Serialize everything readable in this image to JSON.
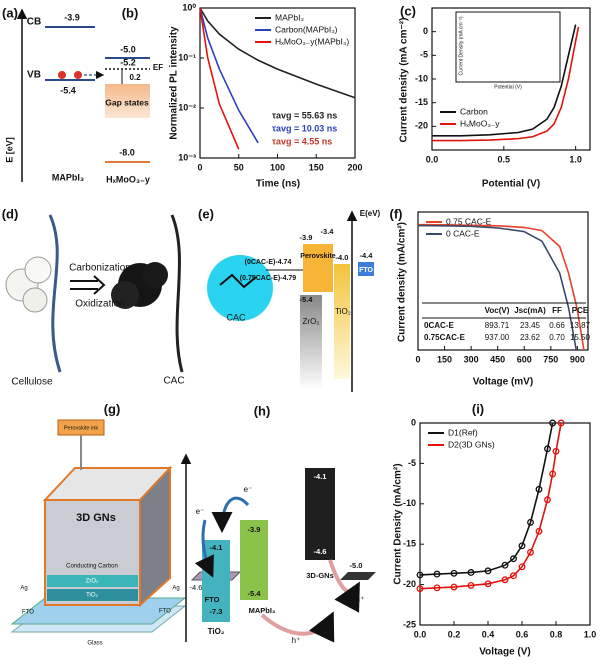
{
  "chart_data": [
    {
      "type": "line",
      "panel_label": "(b)",
      "ylabel": "Normalized PL intensity",
      "xlabel": "Time (ns)",
      "log_y": true,
      "x": [
        0,
        10,
        25,
        50,
        75,
        100,
        150,
        200
      ],
      "series": [
        {
          "name": "MAPbI₃",
          "color": "#222222",
          "values": [
            1,
            0.55,
            0.3,
            0.15,
            0.09,
            0.06,
            0.03,
            0.016
          ]
        },
        {
          "name": "Carbon(MAPbI₃)",
          "color": "#2b3fbf",
          "values": [
            1,
            0.25,
            0.06,
            0.009,
            0.002,
            null,
            null,
            null
          ]
        },
        {
          "name": "HₓMoO₃₋y(MAPbI₃)",
          "color": "#e3120b",
          "values": [
            1,
            0.1,
            0.012,
            0.0015,
            null,
            null,
            null,
            null
          ]
        }
      ],
      "xlim": [
        0,
        200
      ],
      "xticks": [
        0,
        50,
        100,
        150,
        200
      ],
      "ylim": [
        0.001,
        1
      ],
      "yticks": [
        {
          "value": 0.001,
          "label": "10⁻³"
        },
        {
          "value": 0.01,
          "label": "10⁻²"
        },
        {
          "value": 0.1,
          "label": "10⁻¹"
        },
        {
          "value": 1,
          "label": "10⁰"
        }
      ],
      "legend": "upper right",
      "annotations": [
        {
          "text": "τavg = 55.63 ns",
          "color": "#222222"
        },
        {
          "text": "τavg = 10.03 ns",
          "color": "#2b3fbf"
        },
        {
          "text": "τavg = 4.55 ns",
          "color": "#c0392b"
        }
      ]
    },
    {
      "type": "line",
      "panel_label": "(c)",
      "ylabel": "Current density (mA cm⁻²)",
      "xlabel": "Potential (V)",
      "x": [
        0,
        0.2,
        0.4,
        0.6,
        0.7,
        0.8,
        0.85,
        0.9,
        0.95,
        1,
        1.02
      ],
      "series": [
        {
          "name": "Carbon",
          "color": "#111111",
          "values": [
            -22,
            -22,
            -21.8,
            -21.3,
            -20.6,
            -18.5,
            -16,
            -11.5,
            -5,
            1.5,
            null
          ]
        },
        {
          "name": "HₓMoO₃₋y",
          "color": "#e3120b",
          "values": [
            -23,
            -23,
            -22.9,
            -22.6,
            -22.2,
            -21,
            -19.5,
            -16,
            -10,
            -2,
            1
          ]
        }
      ],
      "xlim": [
        0,
        1.1
      ],
      "xticks": [
        {
          "value": 0,
          "label": "0.0"
        },
        0.5,
        {
          "value": 1,
          "label": "1.0"
        }
      ],
      "ylim": [
        -25,
        5
      ],
      "yticks": [
        -20,
        -15,
        -10,
        -5,
        0
      ],
      "legend": "lower left",
      "inset": {
        "xlabel": "Potential (V)",
        "ylabel": "Current Density (mA cm⁻²)"
      }
    },
    {
      "type": "line",
      "panel_label": "(f)",
      "ylabel": "Current density (mA/cm²)",
      "xlabel": "Voltage (mV)",
      "x": [
        0,
        150,
        300,
        450,
        600,
        700,
        800,
        850,
        893.71,
        900,
        937
      ],
      "series": [
        {
          "name": "0.75 CAC-E",
          "color": "#e8412c",
          "values": [
            23.62,
            23.6,
            23.5,
            23.4,
            23.1,
            22.5,
            19.5,
            14.5,
            8.5,
            7.5,
            0
          ]
        },
        {
          "name": "0 CAC-E",
          "color": "#3a4a66",
          "values": [
            23.45,
            23.4,
            23.3,
            23.0,
            22.3,
            20.5,
            14.5,
            8,
            0,
            null,
            null
          ]
        }
      ],
      "xlim": [
        0,
        960
      ],
      "xticks": [
        0,
        150,
        300,
        450,
        600,
        750,
        900
      ],
      "ylim": [
        0,
        26
      ],
      "legend": "upper left",
      "table": {
        "header": [
          "Voc(V)",
          "Jsc(mA)",
          "FF",
          "PCE"
        ],
        "rows": [
          [
            "0CAC-E",
            "893.71",
            "23.45",
            "0.66",
            "13.87"
          ],
          [
            "0.75CAC-E",
            "937.00",
            "23.62",
            "0.70",
            "15.50"
          ]
        ]
      }
    },
    {
      "type": "line",
      "panel_label": "(i)",
      "ylabel": "Current Density (mA/cm²)",
      "xlabel": "Voltage (V)",
      "markers": true,
      "x": [
        0,
        0.1,
        0.2,
        0.3,
        0.4,
        0.5,
        0.55,
        0.6,
        0.65,
        0.7,
        0.75,
        0.78,
        0.8,
        0.83
      ],
      "series": [
        {
          "name": "D1(Ref)",
          "color": "#111111",
          "values": [
            -18.8,
            -18.7,
            -18.6,
            -18.5,
            -18.3,
            -17.6,
            -16.8,
            -15.2,
            -12.3,
            -8.2,
            -3.2,
            0,
            null,
            null
          ]
        },
        {
          "name": "D2(3D GNs)",
          "color": "#e3120b",
          "values": [
            -20.5,
            -20.4,
            -20.3,
            -20.1,
            -19.9,
            -19.4,
            -18.9,
            -17.8,
            -16,
            -13.4,
            -9.5,
            -6.3,
            -3.5,
            0
          ]
        }
      ],
      "xlim": [
        0,
        1
      ],
      "xticks": [
        {
          "value": 0,
          "label": "0.0"
        },
        0.2,
        0.4,
        0.6,
        0.8,
        {
          "value": 1,
          "label": "1.0"
        }
      ],
      "ylim": [
        -25,
        0
      ],
      "yticks": [
        -25,
        -20,
        -15,
        -10,
        -5,
        0
      ],
      "legend": "upper left"
    }
  ],
  "diagrams": {
    "a": {
      "panel_label": "(a)",
      "axis_label": "E [eV]",
      "cb": "CB",
      "vb": "VB",
      "mapbi3_cb": "-3.9",
      "mapbi3_vb": "-5.4",
      "moo_cb": "-5.0",
      "moo_ef": "-5.2",
      "ef": "EF",
      "gap": "0.2",
      "gap_states": "Gap states",
      "moo_vb": "-8.0",
      "left_material": "MAPbI₃",
      "right_material": "HₓMoO₃₋y"
    },
    "d": {
      "panel_label": "(d)",
      "step1": "Carbonization",
      "step2": "Oxidization",
      "source": "Cellulose",
      "product": "CAC"
    },
    "e": {
      "panel_label": "(e)",
      "axis_label": "E(eV)",
      "cac": "CAC",
      "levels": [
        "-3.9",
        "-3.4",
        "-4.0",
        "-4.4",
        "-5.4"
      ],
      "wf_0": "(0CAC-E)-4.74",
      "wf_075": "(0.75CAC-E)-4.79",
      "perovskite": "Perovskite",
      "fto": "FTO",
      "zro2": "ZrO₂",
      "tio2": "TiO₂"
    },
    "g": {
      "panel_label": "(g)",
      "ink": "Perovskite ink",
      "gns": "3D GNs",
      "carbon": "Conducting Carbon",
      "zro2": "ZrO₂",
      "tio2": "TiO₂",
      "fto": "FTO",
      "glass": "Glass",
      "ag": "Ag"
    },
    "h": {
      "panel_label": "(h)",
      "fto_level": "-4.6",
      "tio2_top": "-4.1",
      "tio2_bottom": "-7.3",
      "mapbi3_top": "-3.9",
      "mapbi3_bottom": "-5.4",
      "gns_top": "-4.1",
      "gns_bottom": "-4.6",
      "electrode": "-5.0",
      "fto": "FTO",
      "tio2": "TiO₂",
      "mapbi3": "MAPbI₃",
      "gns": "3D-GNs",
      "electron": "e⁻",
      "hole": "h⁺"
    }
  }
}
